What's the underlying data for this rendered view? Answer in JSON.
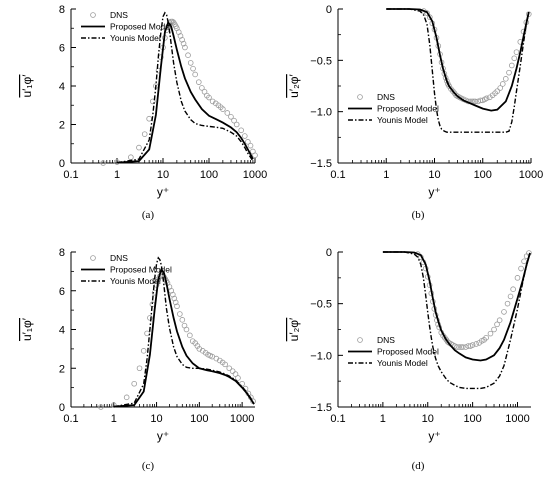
{
  "chart_data": [
    {
      "type": "line",
      "caption": "(a)",
      "xlabel": "y⁺",
      "ylabel": "u′₁φ′",
      "xscale": "log",
      "xlim": [
        0.1,
        1000
      ],
      "ylim": [
        0,
        8
      ],
      "xticks": [
        "0.1",
        "1",
        "10",
        "100",
        "1000"
      ],
      "yticks": [
        "0",
        "2",
        "4",
        "6",
        "8"
      ],
      "legend_position": "top-left",
      "legend": [
        "DNS",
        "Proposed Model",
        "Younis Model"
      ],
      "series": [
        {
          "name": "DNS",
          "style": "markers",
          "x": [
            0.5,
            1,
            2,
            3,
            4,
            5,
            6,
            7,
            8,
            9,
            10,
            11,
            12,
            13,
            14,
            15,
            16,
            17,
            18,
            19,
            20,
            22,
            24,
            26,
            28,
            30,
            35,
            40,
            45,
            50,
            60,
            70,
            80,
            90,
            100,
            120,
            140,
            160,
            180,
            200,
            250,
            300,
            350,
            400,
            500,
            600,
            700,
            800,
            900,
            1000
          ],
          "y": [
            0.0,
            0.05,
            0.3,
            0.8,
            1.5,
            2.3,
            3.2,
            4.0,
            4.8,
            5.5,
            6.0,
            6.5,
            6.9,
            7.1,
            7.3,
            7.35,
            7.35,
            7.3,
            7.2,
            7.1,
            7.0,
            6.8,
            6.6,
            6.4,
            6.2,
            6.0,
            5.6,
            5.2,
            4.9,
            4.6,
            4.2,
            3.9,
            3.7,
            3.5,
            3.4,
            3.2,
            3.1,
            3.0,
            2.9,
            2.8,
            2.6,
            2.4,
            2.2,
            2.0,
            1.7,
            1.4,
            1.1,
            0.9,
            0.6,
            0.4
          ]
        },
        {
          "name": "Proposed Model",
          "style": "solid",
          "x": [
            1,
            3,
            5,
            7,
            9,
            11,
            13,
            15,
            17,
            20,
            25,
            30,
            40,
            50,
            70,
            100,
            150,
            200,
            300,
            400,
            500,
            600,
            700,
            800,
            900
          ],
          "y": [
            0.02,
            0.1,
            0.7,
            2.5,
            5.0,
            6.8,
            7.3,
            7.1,
            6.6,
            5.9,
            5.0,
            4.4,
            3.7,
            3.3,
            2.8,
            2.45,
            2.25,
            2.1,
            1.85,
            1.6,
            1.3,
            1.0,
            0.7,
            0.45,
            0.2
          ]
        },
        {
          "name": "Younis Model",
          "style": "dashdot",
          "x": [
            1,
            3,
            5,
            6,
            7,
            8,
            9,
            10,
            11,
            12,
            13,
            14,
            15,
            17,
            20,
            25,
            30,
            40,
            50,
            70,
            100,
            150,
            200,
            300,
            400,
            500,
            600,
            700,
            800,
            900
          ],
          "y": [
            0.02,
            0.2,
            1.2,
            2.5,
            4.0,
            5.6,
            6.8,
            7.6,
            7.8,
            7.7,
            7.3,
            6.8,
            6.2,
            5.2,
            4.2,
            3.2,
            2.7,
            2.25,
            2.05,
            1.95,
            1.9,
            1.85,
            1.8,
            1.6,
            1.4,
            1.1,
            0.8,
            0.5,
            0.3,
            0.1
          ]
        }
      ]
    },
    {
      "type": "line",
      "caption": "(b)",
      "xlabel": "y⁺",
      "ylabel": "u′₂φ′",
      "xscale": "log",
      "xlim": [
        0.1,
        1000
      ],
      "ylim": [
        -1.5,
        0
      ],
      "xticks": [
        "0.1",
        "1",
        "10",
        "100",
        "1000"
      ],
      "yticks": [
        "0",
        "−0.5",
        "−1.0",
        "−1.5"
      ],
      "legend_position": "center-left",
      "legend": [
        "DNS",
        "Proposed Model",
        "Younis Model"
      ],
      "series": [
        {
          "name": "DNS",
          "style": "markers",
          "x": [
            6,
            7,
            8,
            9,
            10,
            11,
            12,
            13,
            14,
            15,
            16,
            17,
            18,
            19,
            20,
            22,
            24,
            26,
            28,
            30,
            33,
            36,
            40,
            45,
            50,
            55,
            60,
            65,
            70,
            80,
            90,
            100,
            110,
            120,
            140,
            160,
            180,
            200,
            230,
            260,
            300,
            350,
            400,
            450,
            500,
            600,
            700,
            800,
            900
          ],
          "y": [
            -0.02,
            -0.04,
            -0.08,
            -0.14,
            -0.2,
            -0.28,
            -0.36,
            -0.44,
            -0.52,
            -0.58,
            -0.63,
            -0.67,
            -0.7,
            -0.73,
            -0.75,
            -0.78,
            -0.8,
            -0.82,
            -0.84,
            -0.85,
            -0.86,
            -0.87,
            -0.88,
            -0.89,
            -0.9,
            -0.9,
            -0.9,
            -0.9,
            -0.9,
            -0.9,
            -0.89,
            -0.89,
            -0.88,
            -0.87,
            -0.86,
            -0.84,
            -0.82,
            -0.8,
            -0.77,
            -0.73,
            -0.68,
            -0.62,
            -0.55,
            -0.48,
            -0.42,
            -0.32,
            -0.22,
            -0.13,
            -0.05
          ]
        },
        {
          "name": "Proposed Model",
          "style": "solid",
          "x": [
            1,
            3,
            5,
            7,
            9,
            11,
            13,
            15,
            18,
            20,
            25,
            30,
            40,
            50,
            70,
            100,
            150,
            200,
            300,
            400,
            500,
            600,
            700,
            800,
            900
          ],
          "y": [
            0.0,
            0.0,
            -0.005,
            -0.03,
            -0.12,
            -0.28,
            -0.45,
            -0.58,
            -0.7,
            -0.75,
            -0.81,
            -0.85,
            -0.89,
            -0.91,
            -0.94,
            -0.97,
            -0.99,
            -0.98,
            -0.9,
            -0.75,
            -0.58,
            -0.42,
            -0.27,
            -0.14,
            -0.03
          ]
        },
        {
          "name": "Younis Model",
          "style": "dashdot",
          "x": [
            1,
            3,
            5,
            6,
            7,
            8,
            9,
            10,
            11,
            12,
            13,
            14,
            15,
            16,
            18,
            20,
            25,
            30,
            40,
            50,
            70,
            100,
            150,
            200,
            250,
            300,
            350,
            400,
            450,
            500,
            600,
            700,
            800,
            900
          ],
          "y": [
            0.0,
            0.0,
            -0.02,
            -0.06,
            -0.15,
            -0.35,
            -0.6,
            -0.82,
            -0.98,
            -1.08,
            -1.14,
            -1.17,
            -1.18,
            -1.19,
            -1.2,
            -1.2,
            -1.2,
            -1.2,
            -1.2,
            -1.2,
            -1.2,
            -1.2,
            -1.2,
            -1.2,
            -1.2,
            -1.2,
            -1.19,
            -1.1,
            -0.95,
            -0.8,
            -0.55,
            -0.33,
            -0.15,
            -0.03
          ]
        }
      ]
    },
    {
      "type": "line",
      "caption": "(c)",
      "xlabel": "y⁺",
      "ylabel": "u′₁φ′",
      "xscale": "log",
      "xlim": [
        0.1,
        2000
      ],
      "ylim": [
        0,
        8
      ],
      "xticks": [
        "0.1",
        "1",
        "10",
        "100",
        "1000"
      ],
      "yticks": [
        "0",
        "2",
        "4",
        "6",
        "8"
      ],
      "legend_position": "top-left",
      "legend": [
        "DNS",
        "Proposed Model",
        "Younis Model"
      ],
      "series": [
        {
          "name": "DNS",
          "style": "markers",
          "x": [
            0.5,
            1,
            2,
            3,
            4,
            5,
            6,
            7,
            8,
            9,
            10,
            11,
            12,
            13,
            14,
            15,
            16,
            17,
            18,
            20,
            22,
            24,
            26,
            28,
            30,
            35,
            40,
            45,
            50,
            60,
            70,
            80,
            90,
            100,
            120,
            140,
            160,
            180,
            200,
            250,
            300,
            350,
            400,
            500,
            600,
            700,
            800,
            1000,
            1200,
            1400,
            1600,
            1800
          ],
          "y": [
            0.0,
            0.1,
            0.5,
            1.2,
            2.0,
            2.9,
            3.8,
            4.6,
            5.3,
            5.9,
            6.3,
            6.6,
            6.75,
            6.8,
            6.75,
            6.7,
            6.6,
            6.5,
            6.4,
            6.2,
            6.0,
            5.8,
            5.6,
            5.4,
            5.2,
            4.8,
            4.5,
            4.2,
            4.0,
            3.7,
            3.4,
            3.3,
            3.15,
            3.0,
            2.9,
            2.8,
            2.7,
            2.65,
            2.6,
            2.5,
            2.4,
            2.3,
            2.2,
            2.0,
            1.85,
            1.7,
            1.5,
            1.2,
            0.95,
            0.7,
            0.5,
            0.3
          ]
        },
        {
          "name": "Proposed Model",
          "style": "solid",
          "x": [
            1,
            3,
            5,
            7,
            9,
            11,
            13,
            15,
            17,
            20,
            25,
            30,
            40,
            50,
            70,
            100,
            150,
            200,
            300,
            400,
            500,
            700,
            1000,
            1300,
            1600,
            1900
          ],
          "y": [
            0.02,
            0.1,
            0.8,
            2.7,
            5.0,
            6.6,
            7.1,
            6.9,
            6.4,
            5.6,
            4.6,
            3.9,
            3.1,
            2.65,
            2.25,
            2.0,
            1.9,
            1.85,
            1.75,
            1.65,
            1.55,
            1.35,
            1.0,
            0.7,
            0.4,
            0.15
          ]
        },
        {
          "name": "Younis Model",
          "style": "dashdot",
          "x": [
            1,
            3,
            5,
            6,
            7,
            8,
            9,
            10,
            11,
            12,
            13,
            14,
            15,
            17,
            20,
            25,
            30,
            40,
            50,
            70,
            100,
            150,
            200,
            300,
            400,
            500,
            700,
            1000,
            1300,
            1600,
            1900
          ],
          "y": [
            0.02,
            0.2,
            1.2,
            2.5,
            4.0,
            5.4,
            6.6,
            7.4,
            7.7,
            7.6,
            7.3,
            6.8,
            6.2,
            5.1,
            4.1,
            3.1,
            2.6,
            2.2,
            2.05,
            2.0,
            2.0,
            1.95,
            1.9,
            1.8,
            1.7,
            1.6,
            1.4,
            1.05,
            0.75,
            0.45,
            0.15
          ]
        }
      ]
    },
    {
      "type": "line",
      "caption": "(d)",
      "xlabel": "y⁺",
      "ylabel": "u′₂φ′",
      "xscale": "log",
      "xlim": [
        0.1,
        2000
      ],
      "ylim": [
        -1.5,
        0
      ],
      "xticks": [
        "0.1",
        "1",
        "10",
        "100",
        "1000"
      ],
      "yticks": [
        "0",
        "−0.5",
        "−1.0",
        "−1.5"
      ],
      "legend_position": "center-left",
      "legend": [
        "DNS",
        "Proposed Model",
        "Younis Model"
      ],
      "series": [
        {
          "name": "DNS",
          "style": "markers",
          "x": [
            6,
            7,
            8,
            9,
            10,
            11,
            12,
            13,
            14,
            15,
            16,
            17,
            18,
            20,
            22,
            24,
            26,
            28,
            30,
            33,
            36,
            40,
            45,
            50,
            55,
            60,
            70,
            80,
            90,
            100,
            120,
            140,
            160,
            180,
            200,
            250,
            300,
            350,
            400,
            500,
            600,
            700,
            800,
            1000,
            1200,
            1400,
            1600,
            1800
          ],
          "y": [
            -0.02,
            -0.05,
            -0.1,
            -0.16,
            -0.24,
            -0.32,
            -0.4,
            -0.48,
            -0.55,
            -0.61,
            -0.66,
            -0.7,
            -0.73,
            -0.78,
            -0.81,
            -0.83,
            -0.85,
            -0.87,
            -0.88,
            -0.89,
            -0.9,
            -0.91,
            -0.92,
            -0.92,
            -0.92,
            -0.92,
            -0.92,
            -0.91,
            -0.91,
            -0.9,
            -0.89,
            -0.88,
            -0.86,
            -0.85,
            -0.83,
            -0.79,
            -0.75,
            -0.7,
            -0.66,
            -0.58,
            -0.5,
            -0.43,
            -0.36,
            -0.25,
            -0.16,
            -0.09,
            -0.04,
            -0.01
          ]
        },
        {
          "name": "Proposed Model",
          "style": "solid",
          "x": [
            1,
            3,
            5,
            7,
            9,
            11,
            13,
            15,
            18,
            20,
            25,
            30,
            40,
            50,
            70,
            100,
            150,
            200,
            300,
            400,
            500,
            700,
            1000,
            1300,
            1600,
            1900
          ],
          "y": [
            0.0,
            0.0,
            -0.005,
            -0.03,
            -0.12,
            -0.28,
            -0.45,
            -0.58,
            -0.7,
            -0.76,
            -0.84,
            -0.89,
            -0.95,
            -0.98,
            -1.02,
            -1.04,
            -1.05,
            -1.04,
            -1.0,
            -0.93,
            -0.85,
            -0.68,
            -0.45,
            -0.28,
            -0.12,
            -0.01
          ]
        },
        {
          "name": "Younis Model",
          "style": "dashdot",
          "x": [
            1,
            3,
            5,
            6,
            7,
            8,
            9,
            10,
            11,
            12,
            13,
            14,
            15,
            17,
            20,
            25,
            30,
            40,
            50,
            70,
            100,
            150,
            200,
            300,
            400,
            500,
            700,
            1000,
            1300,
            1600,
            1900
          ],
          "y": [
            0.0,
            0.0,
            -0.02,
            -0.05,
            -0.12,
            -0.25,
            -0.42,
            -0.58,
            -0.72,
            -0.83,
            -0.92,
            -0.98,
            -1.03,
            -1.1,
            -1.16,
            -1.22,
            -1.26,
            -1.29,
            -1.31,
            -1.32,
            -1.32,
            -1.32,
            -1.31,
            -1.27,
            -1.2,
            -1.1,
            -0.85,
            -0.55,
            -0.3,
            -0.12,
            -0.01
          ]
        }
      ]
    }
  ]
}
